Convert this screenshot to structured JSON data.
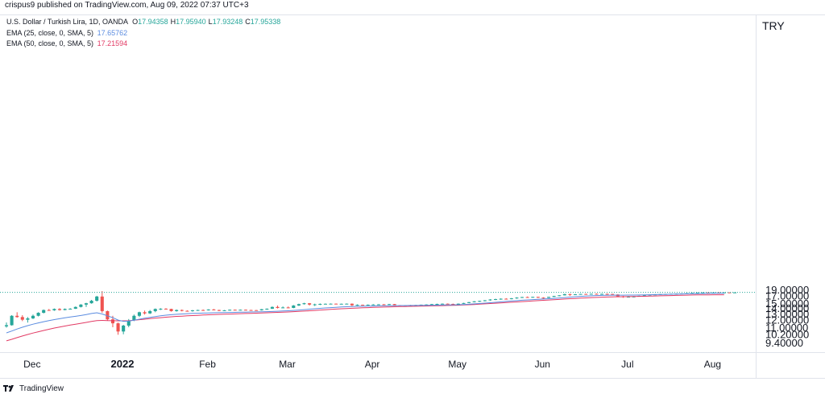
{
  "header": {
    "publisher": "crispus9 published on TradingView.com, Aug 09, 2022 07:37 UTC+3"
  },
  "legend": {
    "symbol": "U.S. Dollar / Turkish Lira, 1D, OANDA",
    "ohlc": [
      {
        "label": "O",
        "value": "17.94358"
      },
      {
        "label": "H",
        "value": "17.95940"
      },
      {
        "label": "L",
        "value": "17.93248"
      },
      {
        "label": "C",
        "value": "17.95338"
      }
    ],
    "ema25_label": "EMA (25, close, 0, SMA, 5)",
    "ema25_value": "17.65762",
    "ema50_label": "EMA (50, close, 0, SMA, 5)",
    "ema50_value": "17.21594"
  },
  "currency": "TRY",
  "footer": {
    "brand": "TradingView"
  },
  "colors": {
    "up": "#26a69a",
    "down": "#ef5350",
    "ema25": "#5b8ce0",
    "ema50": "#e23a64",
    "text": "#131722",
    "last": "#26a69a"
  },
  "chart_data": {
    "type": "candlestick",
    "title": "U.S. Dollar / Turkish Lira, 1D, OANDA",
    "price_scale_labels": [
      "19.00000",
      "17.00000",
      "15.00000",
      "14.00000",
      "13.00000",
      "12.00000",
      "11.00000",
      "10.20000",
      "9.40000"
    ],
    "price_scale_values": [
      19.0,
      17.0,
      15.0,
      14.0,
      13.0,
      12.0,
      11.0,
      10.2,
      9.4
    ],
    "x_labels": [
      "Dec",
      "2022",
      "Feb",
      "Mar",
      "Apr",
      "May",
      "Jun",
      "Jul",
      "Aug"
    ],
    "last_price": 17.95338,
    "candles": [
      {
        "o": 11.1,
        "h": 11.6,
        "l": 10.95,
        "c": 11.25
      },
      {
        "o": 11.25,
        "h": 12.7,
        "l": 11.2,
        "c": 12.6
      },
      {
        "o": 12.6,
        "h": 13.2,
        "l": 12.3,
        "c": 12.4
      },
      {
        "o": 12.4,
        "h": 12.7,
        "l": 11.8,
        "c": 12.0
      },
      {
        "o": 12.0,
        "h": 12.4,
        "l": 11.6,
        "c": 12.2
      },
      {
        "o": 12.2,
        "h": 12.8,
        "l": 12.1,
        "c": 12.6
      },
      {
        "o": 12.6,
        "h": 13.2,
        "l": 12.5,
        "c": 13.1
      },
      {
        "o": 13.1,
        "h": 13.7,
        "l": 13.0,
        "c": 13.6
      },
      {
        "o": 13.6,
        "h": 13.8,
        "l": 13.5,
        "c": 13.55
      },
      {
        "o": 13.55,
        "h": 13.9,
        "l": 13.45,
        "c": 13.8
      },
      {
        "o": 13.8,
        "h": 13.95,
        "l": 13.5,
        "c": 13.6
      },
      {
        "o": 13.6,
        "h": 13.9,
        "l": 13.55,
        "c": 13.8
      },
      {
        "o": 13.8,
        "h": 13.95,
        "l": 13.7,
        "c": 13.85
      },
      {
        "o": 13.85,
        "h": 14.3,
        "l": 13.8,
        "c": 14.2
      },
      {
        "o": 14.2,
        "h": 14.8,
        "l": 14.1,
        "c": 14.7
      },
      {
        "o": 14.7,
        "h": 15.1,
        "l": 14.2,
        "c": 15.0
      },
      {
        "o": 15.0,
        "h": 15.8,
        "l": 14.9,
        "c": 15.6
      },
      {
        "o": 15.6,
        "h": 16.9,
        "l": 15.4,
        "c": 16.7
      },
      {
        "o": 16.7,
        "h": 18.4,
        "l": 13.1,
        "c": 13.4
      },
      {
        "o": 13.4,
        "h": 13.5,
        "l": 11.9,
        "c": 12.05
      },
      {
        "o": 12.05,
        "h": 12.6,
        "l": 11.0,
        "c": 11.5
      },
      {
        "o": 11.5,
        "h": 11.6,
        "l": 10.15,
        "c": 10.5
      },
      {
        "o": 10.5,
        "h": 11.3,
        "l": 10.2,
        "c": 11.2
      },
      {
        "o": 11.2,
        "h": 12.1,
        "l": 11.0,
        "c": 11.9
      },
      {
        "o": 11.9,
        "h": 12.8,
        "l": 11.8,
        "c": 12.6
      },
      {
        "o": 12.6,
        "h": 13.3,
        "l": 12.4,
        "c": 13.2
      },
      {
        "o": 13.2,
        "h": 13.5,
        "l": 12.8,
        "c": 13.0
      },
      {
        "o": 13.0,
        "h": 13.6,
        "l": 12.9,
        "c": 13.4
      },
      {
        "o": 13.4,
        "h": 13.9,
        "l": 13.2,
        "c": 13.8
      },
      {
        "o": 13.8,
        "h": 13.95,
        "l": 13.6,
        "c": 13.85
      },
      {
        "o": 13.85,
        "h": 13.95,
        "l": 13.75,
        "c": 13.8
      },
      {
        "o": 13.8,
        "h": 13.85,
        "l": 13.3,
        "c": 13.4
      },
      {
        "o": 13.4,
        "h": 13.7,
        "l": 13.3,
        "c": 13.6
      },
      {
        "o": 13.6,
        "h": 13.7,
        "l": 13.35,
        "c": 13.45
      },
      {
        "o": 13.45,
        "h": 13.55,
        "l": 13.35,
        "c": 13.4
      },
      {
        "o": 13.4,
        "h": 13.6,
        "l": 13.3,
        "c": 13.55
      },
      {
        "o": 13.55,
        "h": 13.65,
        "l": 13.45,
        "c": 13.6
      },
      {
        "o": 13.6,
        "h": 13.7,
        "l": 13.5,
        "c": 13.55
      },
      {
        "o": 13.55,
        "h": 13.75,
        "l": 13.5,
        "c": 13.7
      },
      {
        "o": 13.7,
        "h": 13.8,
        "l": 13.55,
        "c": 13.6
      },
      {
        "o": 13.6,
        "h": 13.65,
        "l": 13.4,
        "c": 13.45
      },
      {
        "o": 13.45,
        "h": 13.6,
        "l": 13.4,
        "c": 13.55
      },
      {
        "o": 13.55,
        "h": 13.7,
        "l": 13.5,
        "c": 13.65
      },
      {
        "o": 13.65,
        "h": 13.7,
        "l": 13.55,
        "c": 13.6
      },
      {
        "o": 13.6,
        "h": 13.7,
        "l": 13.55,
        "c": 13.65
      },
      {
        "o": 13.65,
        "h": 13.7,
        "l": 13.55,
        "c": 13.6
      },
      {
        "o": 13.6,
        "h": 13.65,
        "l": 13.55,
        "c": 13.58
      },
      {
        "o": 13.58,
        "h": 13.62,
        "l": 13.5,
        "c": 13.55
      },
      {
        "o": 13.55,
        "h": 13.8,
        "l": 13.5,
        "c": 13.75
      },
      {
        "o": 13.75,
        "h": 13.9,
        "l": 13.65,
        "c": 13.85
      },
      {
        "o": 13.85,
        "h": 14.3,
        "l": 13.8,
        "c": 14.2
      },
      {
        "o": 14.2,
        "h": 14.5,
        "l": 13.9,
        "c": 14.0
      },
      {
        "o": 14.0,
        "h": 14.3,
        "l": 13.95,
        "c": 14.1
      },
      {
        "o": 14.1,
        "h": 14.3,
        "l": 13.95,
        "c": 14.0
      },
      {
        "o": 14.0,
        "h": 14.6,
        "l": 13.95,
        "c": 14.5
      },
      {
        "o": 14.5,
        "h": 14.9,
        "l": 14.4,
        "c": 14.8
      },
      {
        "o": 14.8,
        "h": 15.1,
        "l": 14.7,
        "c": 15.0
      },
      {
        "o": 15.0,
        "h": 15.05,
        "l": 14.5,
        "c": 14.7
      },
      {
        "o": 14.7,
        "h": 14.9,
        "l": 14.4,
        "c": 14.75
      },
      {
        "o": 14.75,
        "h": 14.95,
        "l": 14.6,
        "c": 14.85
      },
      {
        "o": 14.85,
        "h": 14.95,
        "l": 14.75,
        "c": 14.88
      },
      {
        "o": 14.88,
        "h": 14.95,
        "l": 14.8,
        "c": 14.9
      },
      {
        "o": 14.9,
        "h": 14.95,
        "l": 14.8,
        "c": 14.85
      },
      {
        "o": 14.85,
        "h": 14.92,
        "l": 14.8,
        "c": 14.88
      },
      {
        "o": 14.88,
        "h": 14.95,
        "l": 14.82,
        "c": 14.9
      },
      {
        "o": 14.9,
        "h": 14.95,
        "l": 14.4,
        "c": 14.55
      },
      {
        "o": 14.55,
        "h": 14.75,
        "l": 14.45,
        "c": 14.65
      },
      {
        "o": 14.65,
        "h": 14.7,
        "l": 14.55,
        "c": 14.62
      },
      {
        "o": 14.62,
        "h": 14.72,
        "l": 14.55,
        "c": 14.68
      },
      {
        "o": 14.68,
        "h": 14.8,
        "l": 14.6,
        "c": 14.72
      },
      {
        "o": 14.72,
        "h": 14.8,
        "l": 14.65,
        "c": 14.75
      },
      {
        "o": 14.75,
        "h": 14.82,
        "l": 14.62,
        "c": 14.7
      },
      {
        "o": 14.7,
        "h": 14.85,
        "l": 14.65,
        "c": 14.8
      },
      {
        "o": 14.8,
        "h": 14.85,
        "l": 14.5,
        "c": 14.55
      },
      {
        "o": 14.55,
        "h": 14.6,
        "l": 14.48,
        "c": 14.52
      },
      {
        "o": 14.52,
        "h": 14.6,
        "l": 14.48,
        "c": 14.55
      },
      {
        "o": 14.55,
        "h": 14.62,
        "l": 14.5,
        "c": 14.58
      },
      {
        "o": 14.58,
        "h": 14.65,
        "l": 14.52,
        "c": 14.6
      },
      {
        "o": 14.6,
        "h": 14.7,
        "l": 14.55,
        "c": 14.68
      },
      {
        "o": 14.68,
        "h": 14.75,
        "l": 14.6,
        "c": 14.72
      },
      {
        "o": 14.72,
        "h": 14.85,
        "l": 14.65,
        "c": 14.8
      },
      {
        "o": 14.8,
        "h": 14.9,
        "l": 14.72,
        "c": 14.85
      },
      {
        "o": 14.85,
        "h": 14.95,
        "l": 14.75,
        "c": 14.9
      },
      {
        "o": 14.9,
        "h": 14.95,
        "l": 14.8,
        "c": 14.85
      },
      {
        "o": 14.85,
        "h": 14.92,
        "l": 14.6,
        "c": 14.65
      },
      {
        "o": 14.65,
        "h": 14.95,
        "l": 14.6,
        "c": 14.9
      },
      {
        "o": 14.9,
        "h": 15.1,
        "l": 14.85,
        "c": 15.05
      },
      {
        "o": 15.05,
        "h": 15.3,
        "l": 15.0,
        "c": 15.25
      },
      {
        "o": 15.25,
        "h": 15.5,
        "l": 15.2,
        "c": 15.45
      },
      {
        "o": 15.45,
        "h": 15.6,
        "l": 15.3,
        "c": 15.55
      },
      {
        "o": 15.55,
        "h": 15.75,
        "l": 15.45,
        "c": 15.7
      },
      {
        "o": 15.7,
        "h": 16.0,
        "l": 15.6,
        "c": 15.9
      },
      {
        "o": 15.9,
        "h": 16.1,
        "l": 15.75,
        "c": 16.0
      },
      {
        "o": 16.0,
        "h": 16.2,
        "l": 15.85,
        "c": 16.1
      },
      {
        "o": 16.1,
        "h": 16.25,
        "l": 15.95,
        "c": 16.05
      },
      {
        "o": 16.05,
        "h": 16.3,
        "l": 15.95,
        "c": 16.2
      },
      {
        "o": 16.2,
        "h": 16.5,
        "l": 16.1,
        "c": 16.4
      },
      {
        "o": 16.4,
        "h": 16.6,
        "l": 16.3,
        "c": 16.55
      },
      {
        "o": 16.55,
        "h": 16.7,
        "l": 16.4,
        "c": 16.5
      },
      {
        "o": 16.5,
        "h": 16.65,
        "l": 16.4,
        "c": 16.6
      },
      {
        "o": 16.6,
        "h": 16.65,
        "l": 16.3,
        "c": 16.4
      },
      {
        "o": 16.4,
        "h": 16.5,
        "l": 16.0,
        "c": 16.35
      },
      {
        "o": 16.35,
        "h": 16.65,
        "l": 16.3,
        "c": 16.6
      },
      {
        "o": 16.6,
        "h": 16.9,
        "l": 16.55,
        "c": 16.85
      },
      {
        "o": 16.85,
        "h": 17.1,
        "l": 16.8,
        "c": 17.05
      },
      {
        "o": 17.05,
        "h": 17.5,
        "l": 17.0,
        "c": 17.4
      },
      {
        "o": 17.4,
        "h": 17.55,
        "l": 16.9,
        "c": 17.3
      },
      {
        "o": 17.3,
        "h": 17.45,
        "l": 17.15,
        "c": 17.35
      },
      {
        "o": 17.35,
        "h": 17.5,
        "l": 17.25,
        "c": 17.45
      },
      {
        "o": 17.45,
        "h": 17.55,
        "l": 17.35,
        "c": 17.42
      },
      {
        "o": 17.42,
        "h": 17.55,
        "l": 17.35,
        "c": 17.5
      },
      {
        "o": 17.5,
        "h": 17.6,
        "l": 17.4,
        "c": 17.45
      },
      {
        "o": 17.45,
        "h": 17.55,
        "l": 17.38,
        "c": 17.48
      },
      {
        "o": 17.48,
        "h": 17.58,
        "l": 17.4,
        "c": 17.45
      },
      {
        "o": 17.45,
        "h": 17.5,
        "l": 17.2,
        "c": 17.3
      },
      {
        "o": 17.3,
        "h": 17.35,
        "l": 16.6,
        "c": 16.75
      },
      {
        "o": 16.75,
        "h": 16.9,
        "l": 16.35,
        "c": 16.55
      },
      {
        "o": 16.55,
        "h": 16.85,
        "l": 16.45,
        "c": 16.65
      },
      {
        "o": 16.65,
        "h": 16.8,
        "l": 16.5,
        "c": 16.7
      },
      {
        "o": 16.7,
        "h": 16.95,
        "l": 16.65,
        "c": 16.9
      },
      {
        "o": 16.9,
        "h": 17.1,
        "l": 16.85,
        "c": 17.05
      },
      {
        "o": 17.05,
        "h": 17.3,
        "l": 17.0,
        "c": 17.25
      },
      {
        "o": 17.25,
        "h": 17.4,
        "l": 17.2,
        "c": 17.3
      },
      {
        "o": 17.3,
        "h": 17.45,
        "l": 17.25,
        "c": 17.4
      },
      {
        "o": 17.4,
        "h": 17.5,
        "l": 17.32,
        "c": 17.45
      },
      {
        "o": 17.45,
        "h": 17.55,
        "l": 17.38,
        "c": 17.5
      },
      {
        "o": 17.5,
        "h": 17.6,
        "l": 17.4,
        "c": 17.55
      },
      {
        "o": 17.55,
        "h": 17.65,
        "l": 17.45,
        "c": 17.6
      },
      {
        "o": 17.6,
        "h": 17.75,
        "l": 17.55,
        "c": 17.7
      },
      {
        "o": 17.7,
        "h": 17.85,
        "l": 17.65,
        "c": 17.8
      },
      {
        "o": 17.8,
        "h": 17.92,
        "l": 17.75,
        "c": 17.88
      },
      {
        "o": 17.88,
        "h": 17.96,
        "l": 17.82,
        "c": 17.92
      },
      {
        "o": 17.92,
        "h": 17.96,
        "l": 17.86,
        "c": 17.9
      },
      {
        "o": 17.9,
        "h": 17.96,
        "l": 17.86,
        "c": 17.93
      },
      {
        "o": 17.93,
        "h": 17.96,
        "l": 17.88,
        "c": 17.91
      },
      {
        "o": 17.91,
        "h": 17.96,
        "l": 17.89,
        "c": 17.94
      },
      {
        "o": 17.94,
        "h": 17.96,
        "l": 17.91,
        "c": 17.92
      },
      {
        "o": 17.94,
        "h": 17.96,
        "l": 17.93,
        "c": 17.95
      }
    ],
    "ema25": [
      10.35,
      10.55,
      10.78,
      11.0,
      11.2,
      11.38,
      11.55,
      11.72,
      11.88,
      12.02,
      12.15,
      12.28,
      12.4,
      12.52,
      12.65,
      12.8,
      12.98,
      13.1,
      12.9,
      12.6,
      12.3,
      11.95,
      11.78,
      11.8,
      11.92,
      12.08,
      12.22,
      12.35,
      12.48,
      12.6,
      12.7,
      12.78,
      12.85,
      12.9,
      12.95,
      12.99,
      13.02,
      13.05,
      13.08,
      13.1,
      13.12,
      13.14,
      13.16,
      13.18,
      13.2,
      13.22,
      13.24,
      13.26,
      13.28,
      13.3,
      13.34,
      13.38,
      13.42,
      13.46,
      13.52,
      13.6,
      13.68,
      13.76,
      13.84,
      13.92,
      14.0,
      14.07,
      14.13,
      14.19,
      14.25,
      14.29,
      14.32,
      14.35,
      14.38,
      14.4,
      14.42,
      14.44,
      14.46,
      14.48,
      14.49,
      14.5,
      14.51,
      14.52,
      14.53,
      14.55,
      14.57,
      14.59,
      14.61,
      14.63,
      14.65,
      14.67,
      14.72,
      14.78,
      14.86,
      14.94,
      15.02,
      15.12,
      15.22,
      15.33,
      15.42,
      15.52,
      15.62,
      15.72,
      15.8,
      15.88,
      15.95,
      16.02,
      16.1,
      16.2,
      16.3,
      16.42,
      16.54,
      16.64,
      16.74,
      16.82,
      16.9,
      16.97,
      17.03,
      17.08,
      17.1,
      17.1,
      17.1,
      17.11,
      17.13,
      17.15,
      17.18,
      17.22,
      17.26,
      17.3,
      17.34,
      17.38,
      17.42,
      17.46,
      17.5,
      17.55,
      17.59,
      17.62,
      17.64,
      17.65,
      17.66,
      17.66
    ],
    "ema50": [
      9.55,
      9.7,
      9.86,
      10.02,
      10.18,
      10.33,
      10.47,
      10.62,
      10.76,
      10.9,
      11.03,
      11.15,
      11.27,
      11.38,
      11.5,
      11.62,
      11.75,
      11.88,
      11.9,
      11.88,
      11.86,
      11.84,
      11.84,
      11.86,
      11.92,
      12.0,
      12.08,
      12.16,
      12.24,
      12.31,
      12.38,
      12.44,
      12.5,
      12.55,
      12.6,
      12.64,
      12.68,
      12.72,
      12.76,
      12.8,
      12.83,
      12.86,
      12.89,
      12.92,
      12.95,
      12.98,
      13.01,
      13.04,
      13.07,
      13.1,
      13.13,
      13.17,
      13.21,
      13.25,
      13.3,
      13.35,
      13.41,
      13.47,
      13.53,
      13.6,
      13.66,
      13.72,
      13.78,
      13.84,
      13.89,
      13.94,
      13.99,
      14.03,
      14.07,
      14.11,
      14.15,
      14.18,
      14.21,
      14.24,
      14.27,
      14.3,
      14.32,
      14.35,
      14.37,
      14.4,
      14.42,
      14.45,
      14.48,
      14.51,
      14.54,
      14.57,
      14.62,
      14.67,
      14.73,
      14.79,
      14.86,
      14.93,
      15.0,
      15.08,
      15.15,
      15.23,
      15.31,
      15.39,
      15.47,
      15.55,
      15.62,
      15.69,
      15.77,
      15.85,
      15.93,
      16.02,
      16.1,
      16.18,
      16.26,
      16.33,
      16.4,
      16.46,
      16.52,
      16.57,
      16.61,
      16.63,
      16.65,
      16.68,
      16.71,
      16.74,
      16.78,
      16.82,
      16.86,
      16.9,
      16.94,
      16.98,
      17.02,
      17.06,
      17.1,
      17.14,
      17.17,
      17.19,
      17.2,
      17.21,
      17.22,
      17.22
    ]
  }
}
